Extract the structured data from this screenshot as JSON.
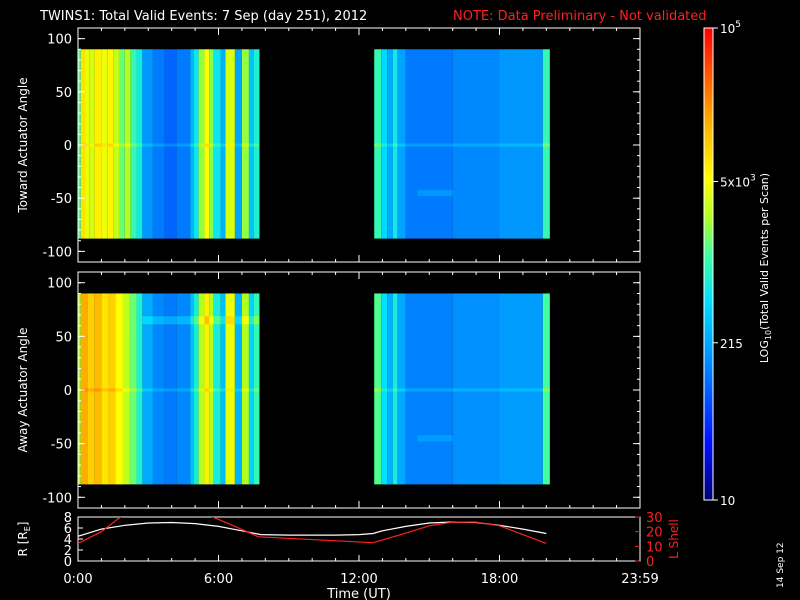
{
  "header": {
    "title": "TWINS1: Total Valid Events:  7 Sep (day 251), 2012",
    "note": "NOTE: Data Preliminary - Not validated",
    "title_color": "#ffffff",
    "note_color": "#ff2020"
  },
  "colorbar": {
    "label_prefix": "LOG",
    "label_sub": "10",
    "label_suffix": "(Total Valid Events per Scan)",
    "ticks": [
      {
        "value": 100000,
        "base": "10",
        "exp": "5"
      },
      {
        "value": 5000,
        "base": "5x10",
        "exp": "3"
      },
      {
        "value": 215,
        "base": "215",
        "exp": ""
      },
      {
        "value": 10,
        "base": "10",
        "exp": ""
      }
    ],
    "range": [
      10,
      100000
    ],
    "scale": "log"
  },
  "side_label": "14 Sep 12",
  "chart_data": [
    {
      "type": "heatmap",
      "name": "toward",
      "ylabel": "Toward Actuator Angle",
      "ylim": [
        -110,
        110
      ],
      "yticks": [
        "100",
        "50",
        "0",
        "-50",
        "-100"
      ],
      "ytick_values": [
        100,
        50,
        0,
        -50,
        -100
      ],
      "angle_range": [
        -88,
        90
      ],
      "time_blocks": [
        {
          "start_hr": 0.0,
          "end_hr": 7.75
        },
        {
          "start_hr": 12.65,
          "end_hr": 20.15
        }
      ],
      "columns": [
        {
          "t0": 0.0,
          "t1": 0.12,
          "v": 0.53
        },
        {
          "t0": 0.12,
          "t1": 0.3,
          "v": 0.72
        },
        {
          "t0": 0.3,
          "t1": 0.5,
          "v": 0.66
        },
        {
          "t0": 0.5,
          "t1": 0.7,
          "v": 0.63
        },
        {
          "t0": 0.7,
          "t1": 1.0,
          "v": 0.7
        },
        {
          "t0": 1.0,
          "t1": 1.25,
          "v": 0.66
        },
        {
          "t0": 1.25,
          "t1": 1.5,
          "v": 0.69
        },
        {
          "t0": 1.5,
          "t1": 1.75,
          "v": 0.62
        },
        {
          "t0": 1.75,
          "t1": 2.0,
          "v": 0.55
        },
        {
          "t0": 2.0,
          "t1": 2.25,
          "v": 0.6
        },
        {
          "t0": 2.25,
          "t1": 2.5,
          "v": 0.5
        },
        {
          "t0": 2.5,
          "t1": 2.75,
          "v": 0.45
        },
        {
          "t0": 2.75,
          "t1": 3.2,
          "v": 0.31
        },
        {
          "t0": 3.2,
          "t1": 3.7,
          "v": 0.27
        },
        {
          "t0": 3.7,
          "t1": 4.2,
          "v": 0.24
        },
        {
          "t0": 4.2,
          "t1": 4.8,
          "v": 0.27
        },
        {
          "t0": 4.8,
          "t1": 4.95,
          "v": 0.36
        },
        {
          "t0": 4.95,
          "t1": 5.15,
          "v": 0.44
        },
        {
          "t0": 5.15,
          "t1": 5.4,
          "v": 0.58
        },
        {
          "t0": 5.4,
          "t1": 5.6,
          "v": 0.68
        },
        {
          "t0": 5.6,
          "t1": 5.8,
          "v": 0.57
        },
        {
          "t0": 5.8,
          "t1": 6.1,
          "v": 0.44
        },
        {
          "t0": 6.1,
          "t1": 6.3,
          "v": 0.35
        },
        {
          "t0": 6.3,
          "t1": 6.7,
          "v": 0.64
        },
        {
          "t0": 6.7,
          "t1": 7.0,
          "v": 0.33
        },
        {
          "t0": 7.0,
          "t1": 7.3,
          "v": 0.58
        },
        {
          "t0": 7.3,
          "t1": 7.5,
          "v": 0.38
        },
        {
          "t0": 7.5,
          "t1": 7.75,
          "v": 0.47
        },
        {
          "t0": 12.65,
          "t1": 12.95,
          "v": 0.5
        },
        {
          "t0": 12.95,
          "t1": 13.2,
          "v": 0.41
        },
        {
          "t0": 13.2,
          "t1": 13.45,
          "v": 0.34
        },
        {
          "t0": 13.45,
          "t1": 13.65,
          "v": 0.45
        },
        {
          "t0": 13.65,
          "t1": 14.0,
          "v": 0.33
        },
        {
          "t0": 14.0,
          "t1": 16.0,
          "v": 0.27
        },
        {
          "t0": 16.0,
          "t1": 18.0,
          "v": 0.29
        },
        {
          "t0": 18.0,
          "t1": 19.85,
          "v": 0.31
        },
        {
          "t0": 19.85,
          "t1": 20.15,
          "v": 0.5
        }
      ],
      "features": [
        {
          "angle": 0,
          "dv": 0.06,
          "width": 3
        },
        {
          "angle": -45,
          "dv": 0.05,
          "width": 6,
          "t0": 14.5,
          "t1": 16.0
        }
      ]
    },
    {
      "type": "heatmap",
      "name": "away",
      "ylabel": "Away Actuator Angle",
      "ylim": [
        -110,
        110
      ],
      "yticks": [
        "100",
        "50",
        "0",
        "-50",
        "-100"
      ],
      "ytick_values": [
        100,
        50,
        0,
        -50,
        -100
      ],
      "angle_range": [
        -88,
        90
      ],
      "time_blocks": [
        {
          "start_hr": 0.0,
          "end_hr": 7.75
        },
        {
          "start_hr": 12.65,
          "end_hr": 20.15
        }
      ],
      "columns": [
        {
          "t0": 0.0,
          "t1": 0.12,
          "v": 0.6
        },
        {
          "t0": 0.12,
          "t1": 0.4,
          "v": 0.8
        },
        {
          "t0": 0.4,
          "t1": 0.7,
          "v": 0.75
        },
        {
          "t0": 0.7,
          "t1": 1.0,
          "v": 0.78
        },
        {
          "t0": 1.0,
          "t1": 1.3,
          "v": 0.72
        },
        {
          "t0": 1.3,
          "t1": 1.6,
          "v": 0.75
        },
        {
          "t0": 1.6,
          "t1": 1.9,
          "v": 0.68
        },
        {
          "t0": 1.9,
          "t1": 2.2,
          "v": 0.62
        },
        {
          "t0": 2.2,
          "t1": 2.5,
          "v": 0.55
        },
        {
          "t0": 2.5,
          "t1": 2.75,
          "v": 0.47
        },
        {
          "t0": 2.75,
          "t1": 3.2,
          "v": 0.34
        },
        {
          "t0": 3.2,
          "t1": 3.7,
          "v": 0.29
        },
        {
          "t0": 3.7,
          "t1": 4.2,
          "v": 0.27
        },
        {
          "t0": 4.2,
          "t1": 4.8,
          "v": 0.29
        },
        {
          "t0": 4.8,
          "t1": 4.95,
          "v": 0.38
        },
        {
          "t0": 4.95,
          "t1": 5.15,
          "v": 0.46
        },
        {
          "t0": 5.15,
          "t1": 5.4,
          "v": 0.6
        },
        {
          "t0": 5.4,
          "t1": 5.6,
          "v": 0.7
        },
        {
          "t0": 5.6,
          "t1": 5.8,
          "v": 0.6
        },
        {
          "t0": 5.8,
          "t1": 6.1,
          "v": 0.46
        },
        {
          "t0": 6.1,
          "t1": 6.3,
          "v": 0.37
        },
        {
          "t0": 6.3,
          "t1": 6.7,
          "v": 0.66
        },
        {
          "t0": 6.7,
          "t1": 7.0,
          "v": 0.35
        },
        {
          "t0": 7.0,
          "t1": 7.3,
          "v": 0.6
        },
        {
          "t0": 7.3,
          "t1": 7.5,
          "v": 0.4
        },
        {
          "t0": 7.5,
          "t1": 7.75,
          "v": 0.5
        },
        {
          "t0": 12.65,
          "t1": 12.95,
          "v": 0.53
        },
        {
          "t0": 12.95,
          "t1": 13.2,
          "v": 0.42
        },
        {
          "t0": 13.2,
          "t1": 13.45,
          "v": 0.35
        },
        {
          "t0": 13.45,
          "t1": 13.65,
          "v": 0.46
        },
        {
          "t0": 13.65,
          "t1": 14.0,
          "v": 0.34
        },
        {
          "t0": 14.0,
          "t1": 16.0,
          "v": 0.28
        },
        {
          "t0": 16.0,
          "t1": 18.0,
          "v": 0.3
        },
        {
          "t0": 18.0,
          "t1": 19.85,
          "v": 0.32
        },
        {
          "t0": 19.85,
          "t1": 20.15,
          "v": 0.52
        }
      ],
      "features": [
        {
          "angle": 0,
          "dv": 0.06,
          "width": 3
        },
        {
          "angle": 65,
          "dv": 0.08,
          "width": 8,
          "t0": 2.75,
          "t1": 7.75
        },
        {
          "angle": -45,
          "dv": 0.05,
          "width": 6,
          "t0": 14.5,
          "t1": 16.0
        }
      ]
    },
    {
      "type": "line",
      "name": "orbit",
      "xlabel": "Time (UT)",
      "xlim": [
        0,
        24
      ],
      "xticks": [
        {
          "value": 0,
          "label": "0:00"
        },
        {
          "value": 6,
          "label": "6:00"
        },
        {
          "value": 12,
          "label": "12:00"
        },
        {
          "value": 18,
          "label": "18:00"
        },
        {
          "value": 24,
          "label": "23:59"
        }
      ],
      "left_axis": {
        "label_main": "R [R",
        "label_sub": "E",
        "label_end": "]",
        "ylim": [
          0,
          8
        ],
        "ticks": [
          "8",
          "6",
          "4",
          "2",
          "0"
        ],
        "tick_values": [
          8,
          6,
          4,
          2,
          0
        ],
        "color": "#ffffff"
      },
      "right_axis": {
        "label": "L Shell",
        "ylim": [
          0,
          30
        ],
        "ticks": [
          "30",
          "20",
          "10",
          "0"
        ],
        "tick_values": [
          30,
          20,
          10,
          0
        ],
        "color": "#ff2020"
      },
      "series": [
        {
          "axis": "left",
          "color": "#ffffff",
          "x": [
            0,
            1,
            2,
            3,
            4,
            5,
            6,
            7,
            7.8,
            9,
            10,
            11,
            12,
            12.6,
            13,
            14,
            15,
            16,
            17,
            18,
            19,
            20
          ],
          "y": [
            4.5,
            5.8,
            6.5,
            6.9,
            7.0,
            6.8,
            6.3,
            5.5,
            4.8,
            4.7,
            4.7,
            4.7,
            4.8,
            5.0,
            5.5,
            6.3,
            6.9,
            7.1,
            7.0,
            6.5,
            5.8,
            5.0
          ]
        },
        {
          "axis": "right",
          "color": "#ff2020",
          "x": [
            0,
            1,
            1.9,
            5.6,
            6.5,
            7.7,
            12.6,
            14,
            15,
            16,
            17,
            18,
            19,
            20
          ],
          "y": [
            12,
            20,
            31,
            31,
            25,
            16.5,
            12.5,
            19,
            24,
            26.5,
            26.5,
            24,
            18,
            12
          ]
        }
      ]
    }
  ]
}
